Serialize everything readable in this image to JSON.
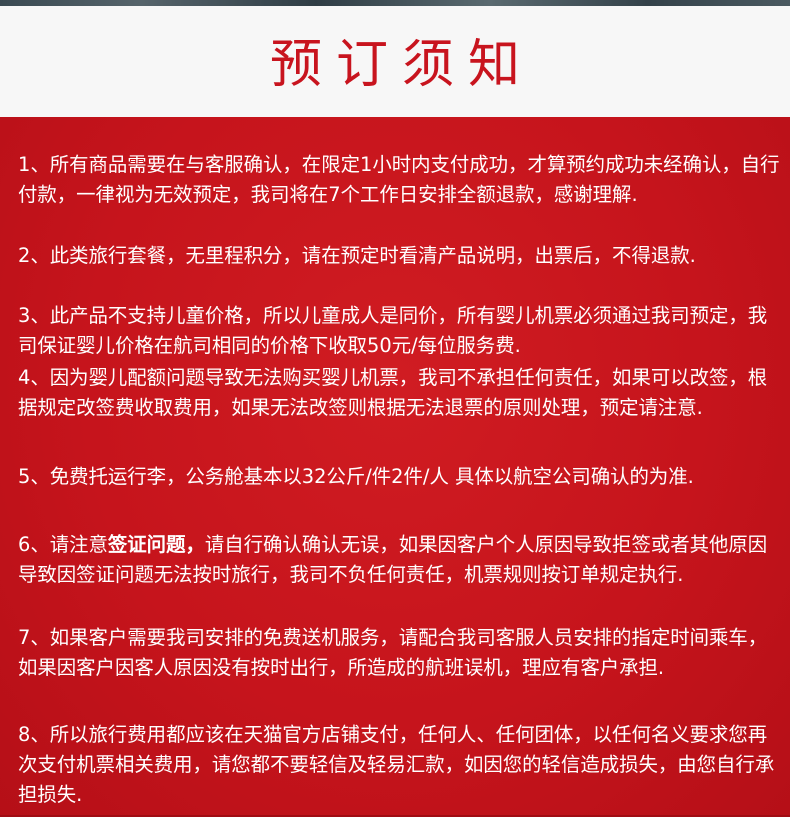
{
  "header": {
    "title": "预订须知"
  },
  "colors": {
    "panel_red": "#c8141e",
    "header_bg": "#f7f7f7",
    "text_white": "#ffffff"
  },
  "notices": [
    {
      "text": "1、所有商品需要在与客服确认，在限定1小时内支付成功，才算预约成功未经确认，自行付款，一律视为无效预定，我司将在7个工作日安排全额退款，感谢理解."
    },
    {
      "text": "2、此类旅行套餐，无里程积分，请在预定时看清产品说明，出票后，不得退款."
    },
    {
      "text": "3、此产品不支持儿童价格，所以儿童成人是同价，所有婴儿机票必须通过我司预定，我司保证婴儿价格在航司相同的价格下收取50元/每位服务费."
    },
    {
      "text": "4、因为婴儿配额问题导致无法购买婴儿机票，我司不承担任何责任，如果可以改签，根据规定改签费收取费用，如果无法改签则根据无法退票的原则处理，预定请注意."
    },
    {
      "text": "5、免费托运行李，公务舱基本以32公斤/件2件/人 具体以航空公司确认的为准."
    },
    {
      "prefix": "6、请注意",
      "emphasis": "签证问题，",
      "rest": "请自行确认确认无误，如果因客户个人原因导致拒签或者其他原因导致因签证问题无法按时旅行，我司不负任何责任，机票规则按订单规定执行."
    },
    {
      "text": "7、如果客户需要我司安排的免费送机服务，请配合我司客服人员安排的指定时间乘车，如果因客户因客人原因没有按时出行，所造成的航班误机，理应有客户承担."
    },
    {
      "text": "8、所以旅行费用都应该在天猫官方店铺支付，任何人、任何团体，以任何名义要求您再次支付机票相关费用，请您都不要轻信及轻易汇款，如因您的轻信造成损失，由您自行承担损失."
    }
  ]
}
